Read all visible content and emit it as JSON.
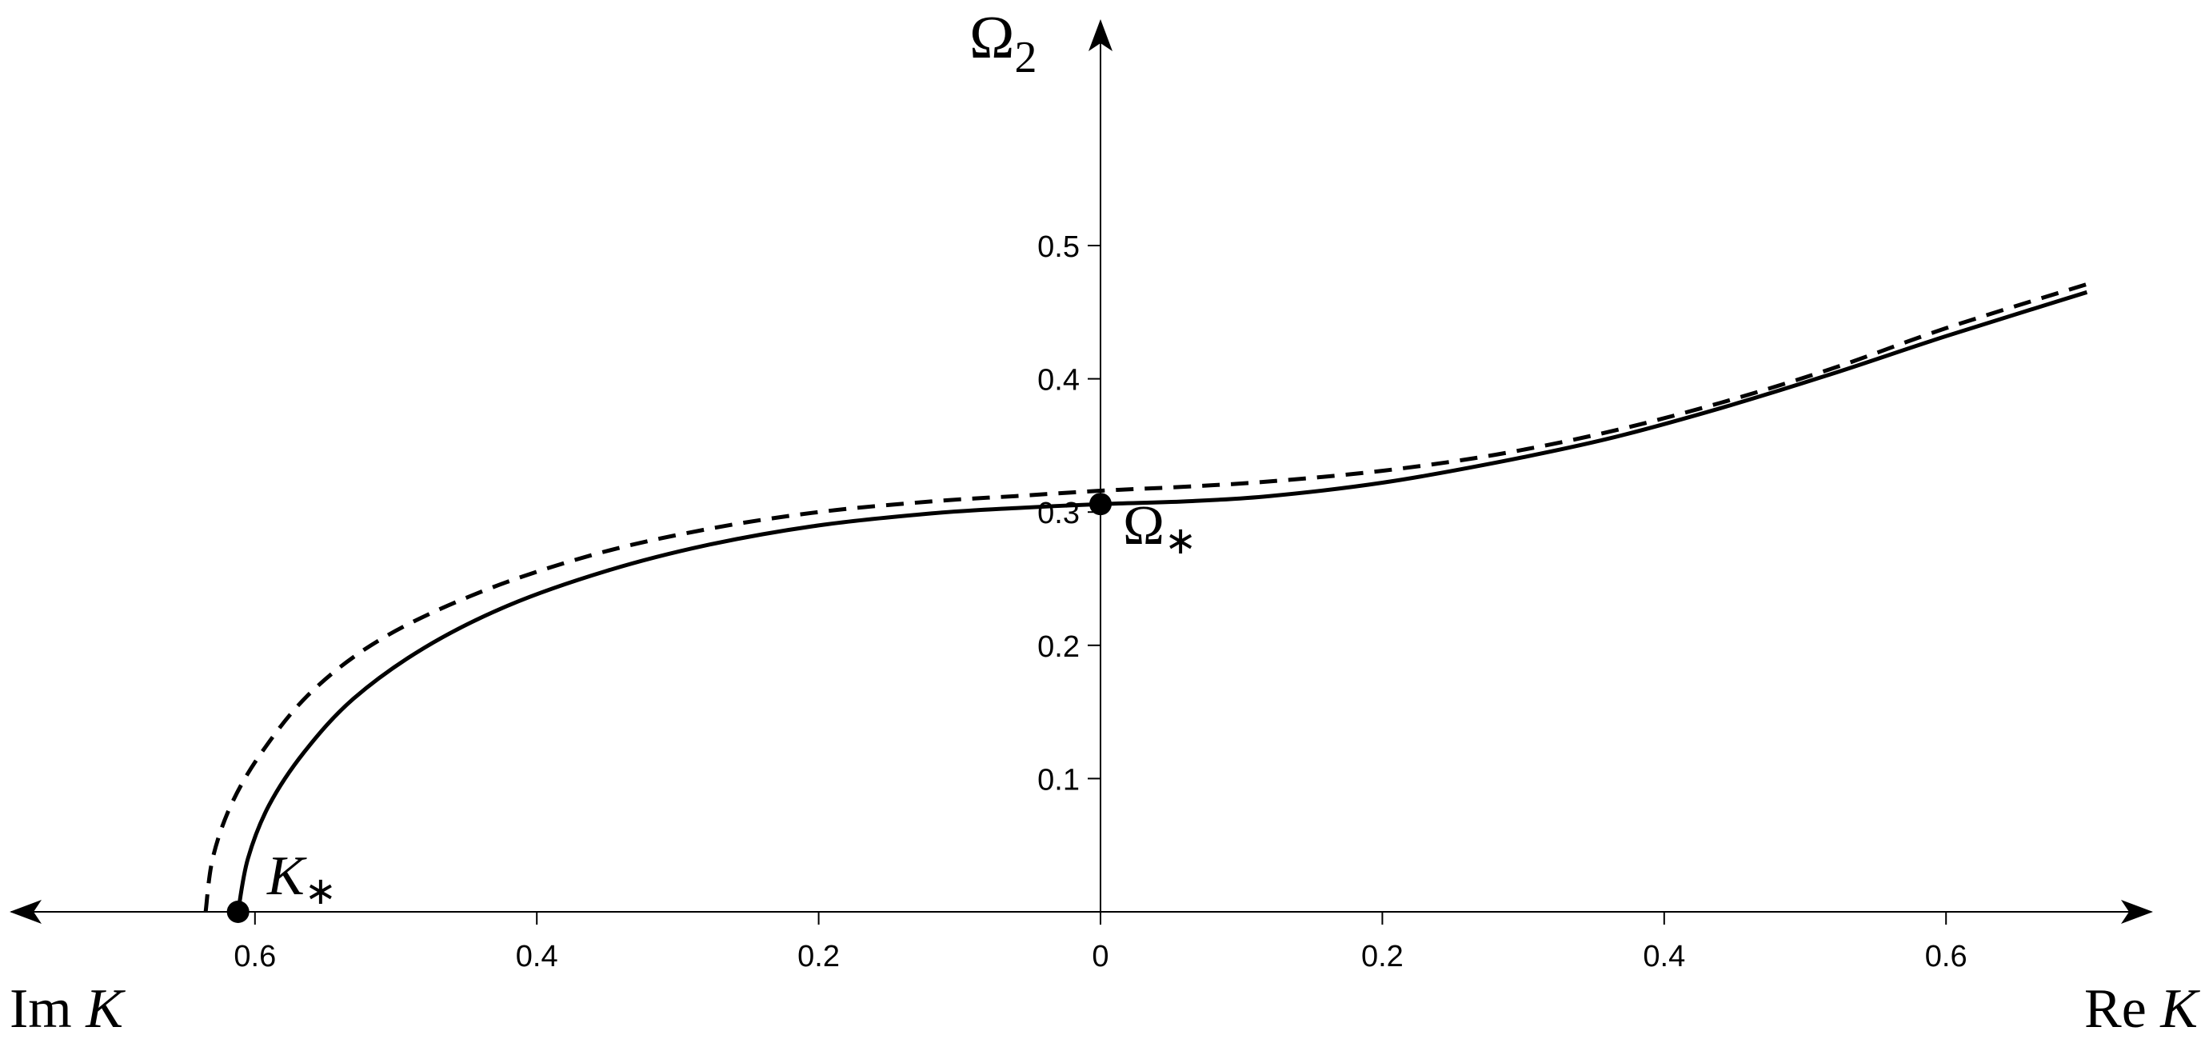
{
  "chart_data": {
    "type": "line",
    "title": "",
    "xlabel_left": {
      "prefix": "Im",
      "var": "K"
    },
    "xlabel_right": {
      "prefix": "Re",
      "var": "K"
    },
    "ylabel": {
      "sym": "Ω",
      "sub": "2"
    },
    "x_range": [
      -0.75,
      0.75
    ],
    "y_range": [
      0,
      0.6
    ],
    "grid": false,
    "x_ticks": [
      {
        "value": -0.6,
        "label": "0.6"
      },
      {
        "value": -0.4,
        "label": "0.4"
      },
      {
        "value": -0.2,
        "label": "0.2"
      },
      {
        "value": 0,
        "label": "0"
      },
      {
        "value": 0.2,
        "label": "0.2"
      },
      {
        "value": 0.4,
        "label": "0.4"
      },
      {
        "value": 0.6,
        "label": "0.6"
      }
    ],
    "y_ticks": [
      {
        "value": 0.1,
        "label": "0.1"
      },
      {
        "value": 0.2,
        "label": "0.2"
      },
      {
        "value": 0.3,
        "label": "0.3"
      },
      {
        "value": 0.4,
        "label": "0.4"
      },
      {
        "value": 0.5,
        "label": "0.5"
      }
    ],
    "series": [
      {
        "style": "solid",
        "points": [
          [
            -0.612,
            0.0
          ],
          [
            -0.605,
            0.04
          ],
          [
            -0.59,
            0.08
          ],
          [
            -0.565,
            0.12
          ],
          [
            -0.53,
            0.16
          ],
          [
            -0.48,
            0.198
          ],
          [
            -0.42,
            0.23
          ],
          [
            -0.35,
            0.256
          ],
          [
            -0.28,
            0.275
          ],
          [
            -0.2,
            0.29
          ],
          [
            -0.12,
            0.299
          ],
          [
            -0.06,
            0.303
          ],
          [
            0.0,
            0.306
          ],
          [
            0.06,
            0.308
          ],
          [
            0.12,
            0.312
          ],
          [
            0.2,
            0.322
          ],
          [
            0.28,
            0.337
          ],
          [
            0.36,
            0.355
          ],
          [
            0.44,
            0.378
          ],
          [
            0.52,
            0.404
          ],
          [
            0.6,
            0.432
          ],
          [
            0.7,
            0.465
          ]
        ]
      },
      {
        "style": "dashed",
        "points": [
          [
            -0.635,
            0.0
          ],
          [
            -0.63,
            0.04
          ],
          [
            -0.617,
            0.08
          ],
          [
            -0.595,
            0.12
          ],
          [
            -0.56,
            0.165
          ],
          [
            -0.51,
            0.205
          ],
          [
            -0.44,
            0.24
          ],
          [
            -0.36,
            0.268
          ],
          [
            -0.28,
            0.287
          ],
          [
            -0.2,
            0.3
          ],
          [
            -0.12,
            0.308
          ],
          [
            -0.06,
            0.312
          ],
          [
            0.0,
            0.316
          ],
          [
            0.06,
            0.319
          ],
          [
            0.12,
            0.323
          ],
          [
            0.2,
            0.331
          ],
          [
            0.28,
            0.343
          ],
          [
            0.36,
            0.36
          ],
          [
            0.44,
            0.382
          ],
          [
            0.52,
            0.408
          ],
          [
            0.6,
            0.438
          ],
          [
            0.7,
            0.471
          ]
        ]
      }
    ],
    "points": [
      {
        "x": -0.612,
        "y": 0.0,
        "label": {
          "sym": "K",
          "sub": "∗"
        }
      },
      {
        "x": 0.0,
        "y": 0.306,
        "label": {
          "sym": "Ω",
          "sub": "∗"
        }
      }
    ]
  }
}
